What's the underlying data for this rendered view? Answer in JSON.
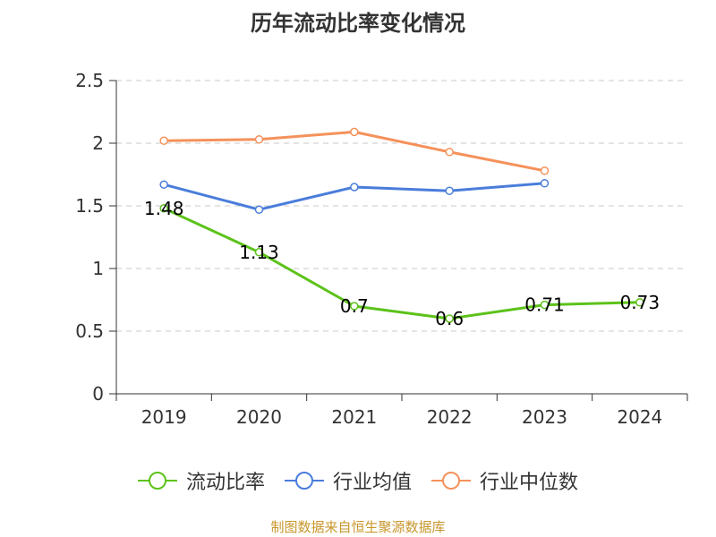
{
  "chart_data": {
    "type": "line",
    "title": "历年流动比率变化情况",
    "categories": [
      "2019",
      "2020",
      "2021",
      "2022",
      "2023",
      "2024"
    ],
    "ylim": [
      0,
      2.5
    ],
    "yticks": [
      "0",
      "0.5",
      "1",
      "1.5",
      "2",
      "2.5"
    ],
    "grid": true,
    "legend_position": "bottom",
    "series": [
      {
        "name": "流动比率",
        "color": "#5cc21a",
        "values": [
          1.48,
          1.13,
          0.7,
          0.6,
          0.71,
          0.73
        ],
        "data_labels": [
          "1.48",
          "1.13",
          "0.7",
          "0.6",
          "0.71",
          "0.73"
        ]
      },
      {
        "name": "行业均值",
        "color": "#4a7ddb",
        "values": [
          1.67,
          1.47,
          1.65,
          1.62,
          1.68,
          null
        ]
      },
      {
        "name": "行业中位数",
        "color": "#f5915a",
        "values": [
          2.02,
          2.03,
          2.09,
          1.93,
          1.78,
          null
        ]
      }
    ],
    "source": "制图数据来自恒生聚源数据库"
  }
}
